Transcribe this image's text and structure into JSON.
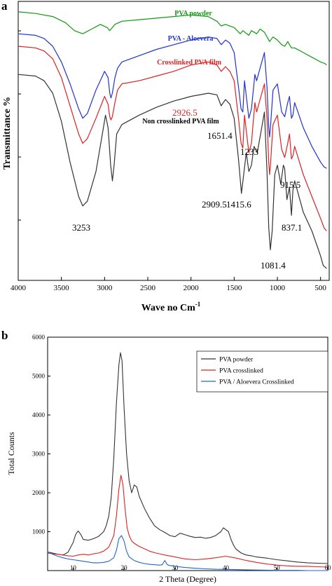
{
  "chart_data": [
    {
      "type": "line",
      "panel": "a",
      "xlabel": "Wave no Cm",
      "xlabel_sup": "-1",
      "ylabel": "Transmittance %",
      "xlim": [
        4000,
        400
      ],
      "x_ticks": [
        "4000",
        "3500",
        "3000",
        "2500",
        "2000",
        "1500",
        "1000",
        "500"
      ],
      "y_ticks_labeled": false,
      "series": [
        {
          "name": "PVA powder",
          "color": "#119911",
          "x": [
            4000,
            3800,
            3600,
            3450,
            3350,
            3253,
            3150,
            3050,
            2970,
            2940,
            2910,
            2880,
            2800,
            2600,
            2400,
            2200,
            2000,
            1800,
            1700,
            1650,
            1600,
            1500,
            1430,
            1400,
            1330,
            1300,
            1240,
            1200,
            1150,
            1090,
            1050,
            1000,
            950,
            915,
            880,
            837,
            800,
            700,
            600,
            500,
            450,
            430
          ],
          "y": [
            92,
            91.5,
            90.5,
            88.5,
            86,
            85,
            86.5,
            88,
            87,
            86,
            87,
            88,
            89,
            89.5,
            90,
            90.5,
            91,
            90.5,
            89,
            87.5,
            88,
            87,
            85,
            86,
            84.5,
            86,
            85,
            86.5,
            85.5,
            82.5,
            84,
            83,
            81.5,
            81,
            82.5,
            80.5,
            80.5,
            79,
            77.5,
            76,
            75.5,
            75
          ]
        },
        {
          "name": "PVA - Aloevera",
          "color": "#2233cc",
          "x": [
            4000,
            3800,
            3700,
            3600,
            3500,
            3400,
            3300,
            3253,
            3200,
            3100,
            3000,
            2960,
            2940,
            2926.5,
            2910,
            2880,
            2850,
            2800,
            2600,
            2400,
            2200,
            2000,
            1800,
            1700,
            1650,
            1600,
            1550,
            1500,
            1450,
            1420,
            1400,
            1380,
            1330,
            1300,
            1260,
            1240,
            1200,
            1150,
            1120,
            1100,
            1090,
            1080,
            1050,
            1000,
            950,
            915,
            880,
            860,
            837,
            820,
            800,
            700,
            600,
            500,
            460,
            430
          ],
          "y": [
            85,
            84.5,
            83.5,
            81,
            76,
            69,
            61,
            58,
            59.5,
            67,
            73,
            71,
            66,
            64.5,
            66,
            71,
            74,
            76,
            78,
            80,
            81.5,
            83,
            84,
            83.5,
            81.5,
            83,
            82,
            79,
            68,
            61,
            60,
            70,
            58,
            61,
            72,
            70,
            74,
            79,
            68,
            55,
            52,
            55,
            67,
            69,
            60,
            58.5,
            63,
            65,
            58,
            59,
            63,
            55,
            49,
            44,
            42.5,
            42
          ]
        },
        {
          "name": "Crosslinked PVA film",
          "color": "#dd2222",
          "x": [
            4000,
            3800,
            3700,
            3600,
            3500,
            3400,
            3300,
            3253,
            3200,
            3100,
            3000,
            2960,
            2940,
            2926.5,
            2910,
            2880,
            2850,
            2800,
            2600,
            2400,
            2200,
            2000,
            1800,
            1700,
            1650,
            1600,
            1550,
            1500,
            1450,
            1420,
            1400,
            1380,
            1330,
            1300,
            1260,
            1240,
            1200,
            1150,
            1120,
            1100,
            1090,
            1080,
            1050,
            1000,
            950,
            915,
            880,
            860,
            837,
            820,
            800,
            700,
            600,
            500,
            460,
            430
          ],
          "y": [
            81,
            80.5,
            79.5,
            77,
            71,
            62,
            53,
            50,
            51.5,
            58,
            65,
            62.5,
            58.5,
            57.5,
            58.5,
            63,
            67,
            69,
            70,
            71.5,
            73,
            75,
            76,
            75,
            73,
            74.5,
            73,
            70,
            58,
            50,
            48.5,
            59,
            47,
            50,
            63,
            60,
            64,
            69,
            58,
            44,
            40,
            43,
            56,
            59,
            48,
            45.5,
            50,
            53,
            45,
            46,
            49,
            40,
            33,
            26,
            23,
            22
          ]
        },
        {
          "name": "Non crosslinked PVA film",
          "color": "#333333",
          "x": [
            4000,
            3800,
            3700,
            3600,
            3500,
            3400,
            3300,
            3253,
            3200,
            3100,
            3020,
            2990,
            2960,
            2930,
            2909.5,
            2890,
            2860,
            2800,
            2600,
            2400,
            2200,
            2000,
            1800,
            1700,
            1651.4,
            1600,
            1550,
            1500,
            1450,
            1415.6,
            1390,
            1360,
            1330,
            1300,
            1270,
            1233,
            1200,
            1150,
            1120,
            1100,
            1081.4,
            1060,
            1030,
            1000,
            960,
            930,
            915.5,
            890,
            860,
            837.1,
            820,
            800,
            700,
            600,
            500,
            470,
            430
          ],
          "y": [
            72,
            71.5,
            70,
            66,
            57,
            44,
            33,
            30,
            31.5,
            41,
            54,
            59,
            55,
            43,
            38,
            43,
            53,
            56,
            59,
            61.5,
            63.5,
            65,
            66,
            65.5,
            62,
            64,
            62.5,
            58,
            45,
            34,
            40,
            47,
            41,
            43,
            49,
            47,
            52,
            60,
            41,
            23,
            16,
            22,
            40,
            43,
            37,
            43,
            42,
            32,
            36,
            27,
            35,
            38,
            28,
            22,
            14,
            11,
            10
          ]
        }
      ],
      "series_labels": [
        "PVA powder",
        "PVA - Aloevera",
        "Crosslinked PVA film",
        "Non crosslinked PVA film"
      ],
      "annotations": [
        {
          "text": "2926.5",
          "x": 2926.5,
          "series": "Crosslinked PVA film",
          "color": "#dd2222"
        },
        {
          "text": "2909.5",
          "x": 2909.5,
          "series": "Non crosslinked PVA film",
          "color": "#000000"
        },
        {
          "text": "3253",
          "x": 3253,
          "series": "Non crosslinked PVA film",
          "color": "#000000"
        },
        {
          "text": "1651.4",
          "x": 1651.4,
          "series": "Non crosslinked PVA film",
          "color": "#000000"
        },
        {
          "text": "1233",
          "x": 1233,
          "series": "Non crosslinked PVA film",
          "color": "#000000"
        },
        {
          "text": "1415.6",
          "x": 1415.6,
          "series": "Non crosslinked PVA film",
          "color": "#000000"
        },
        {
          "text": "915.5",
          "x": 915.5,
          "series": "Non crosslinked PVA film",
          "color": "#000000"
        },
        {
          "text": "837.1",
          "x": 837.1,
          "series": "Non crosslinked PVA film",
          "color": "#000000"
        },
        {
          "text": "1081.4",
          "x": 1081.4,
          "series": "Non crosslinked PVA film",
          "color": "#000000"
        }
      ]
    },
    {
      "type": "line",
      "panel": "b",
      "xlabel": "2 Theta (Degree)",
      "ylabel": "Total Counts",
      "xlim": [
        5,
        60
      ],
      "ylim": [
        0,
        6000
      ],
      "x_ticks": [
        "10",
        "20",
        "30",
        "40",
        "50",
        "60"
      ],
      "y_ticks": [
        "1000",
        "2000",
        "3000",
        "4000",
        "5000",
        "6000"
      ],
      "legend_position": "top-right",
      "series": [
        {
          "name": "PVA powder",
          "color": "#333333",
          "x": [
            5,
            6,
            7,
            8,
            9,
            10,
            10.5,
            11,
            11.5,
            12,
            13,
            14,
            15,
            16,
            16.5,
            17,
            17.5,
            18,
            18.5,
            19,
            19.3,
            19.6,
            20,
            20.5,
            21,
            21.5,
            22,
            22.5,
            23,
            24,
            25,
            26,
            27,
            28,
            29,
            30,
            31,
            32,
            33,
            34,
            35,
            36,
            37,
            38,
            39,
            39.5,
            40,
            40.5,
            41,
            41.5,
            42,
            43,
            44,
            45,
            46,
            48,
            50,
            52,
            54,
            56,
            58,
            60
          ],
          "y": [
            480,
            450,
            420,
            400,
            470,
            720,
            930,
            1020,
            930,
            800,
            780,
            820,
            880,
            1000,
            1150,
            1400,
            1900,
            2900,
            4300,
            5300,
            5600,
            5400,
            4200,
            3000,
            2300,
            2000,
            2200,
            2150,
            1900,
            1600,
            1350,
            1150,
            1050,
            980,
            900,
            870,
            960,
            920,
            880,
            850,
            860,
            830,
            850,
            900,
            1000,
            1100,
            1050,
            1000,
            800,
            650,
            550,
            450,
            400,
            380,
            350,
            320,
            280,
            250,
            220,
            200,
            190,
            180
          ]
        },
        {
          "name": "PVA crosslinked",
          "color": "#dd2222",
          "x": [
            5,
            6,
            7,
            8,
            9,
            10,
            11,
            12,
            13,
            14,
            15,
            16,
            17,
            18,
            18.5,
            19,
            19.4,
            19.8,
            20.2,
            20.6,
            21,
            21.5,
            22,
            23,
            24,
            25,
            26,
            27,
            28,
            30,
            32,
            34,
            36,
            38,
            40,
            42,
            44,
            46,
            48,
            50,
            52,
            54,
            56,
            58,
            60
          ],
          "y": [
            450,
            430,
            420,
            400,
            380,
            370,
            400,
            420,
            400,
            430,
            450,
            500,
            600,
            900,
            1400,
            2100,
            2450,
            2200,
            1600,
            1100,
            900,
            760,
            700,
            620,
            560,
            500,
            460,
            430,
            400,
            350,
            300,
            280,
            300,
            330,
            370,
            320,
            260,
            210,
            170,
            140,
            120,
            110,
            110,
            100,
            90
          ]
        },
        {
          "name": "PVA / Aloevera Crosslinked",
          "color": "#2266cc",
          "x": [
            5,
            6,
            7,
            8,
            9,
            10,
            11,
            12,
            13,
            14,
            15,
            16,
            17,
            18,
            18.5,
            19,
            19.5,
            20,
            20.5,
            21,
            22,
            23,
            24,
            25,
            26,
            27,
            27.5,
            28,
            28.5,
            29,
            30,
            32,
            34,
            36,
            38,
            40,
            42,
            44,
            46,
            48,
            50,
            52,
            54,
            56,
            58,
            60
          ],
          "y": [
            480,
            420,
            370,
            330,
            300,
            280,
            260,
            240,
            220,
            200,
            200,
            210,
            240,
            330,
            520,
            820,
            900,
            760,
            500,
            350,
            260,
            210,
            180,
            160,
            150,
            140,
            150,
            260,
            150,
            130,
            110,
            80,
            60,
            45,
            35,
            30,
            25,
            20,
            15,
            10,
            5,
            5,
            5,
            0,
            0,
            0
          ]
        }
      ]
    }
  ],
  "panel_letters": {
    "a": "a",
    "b": "b"
  }
}
